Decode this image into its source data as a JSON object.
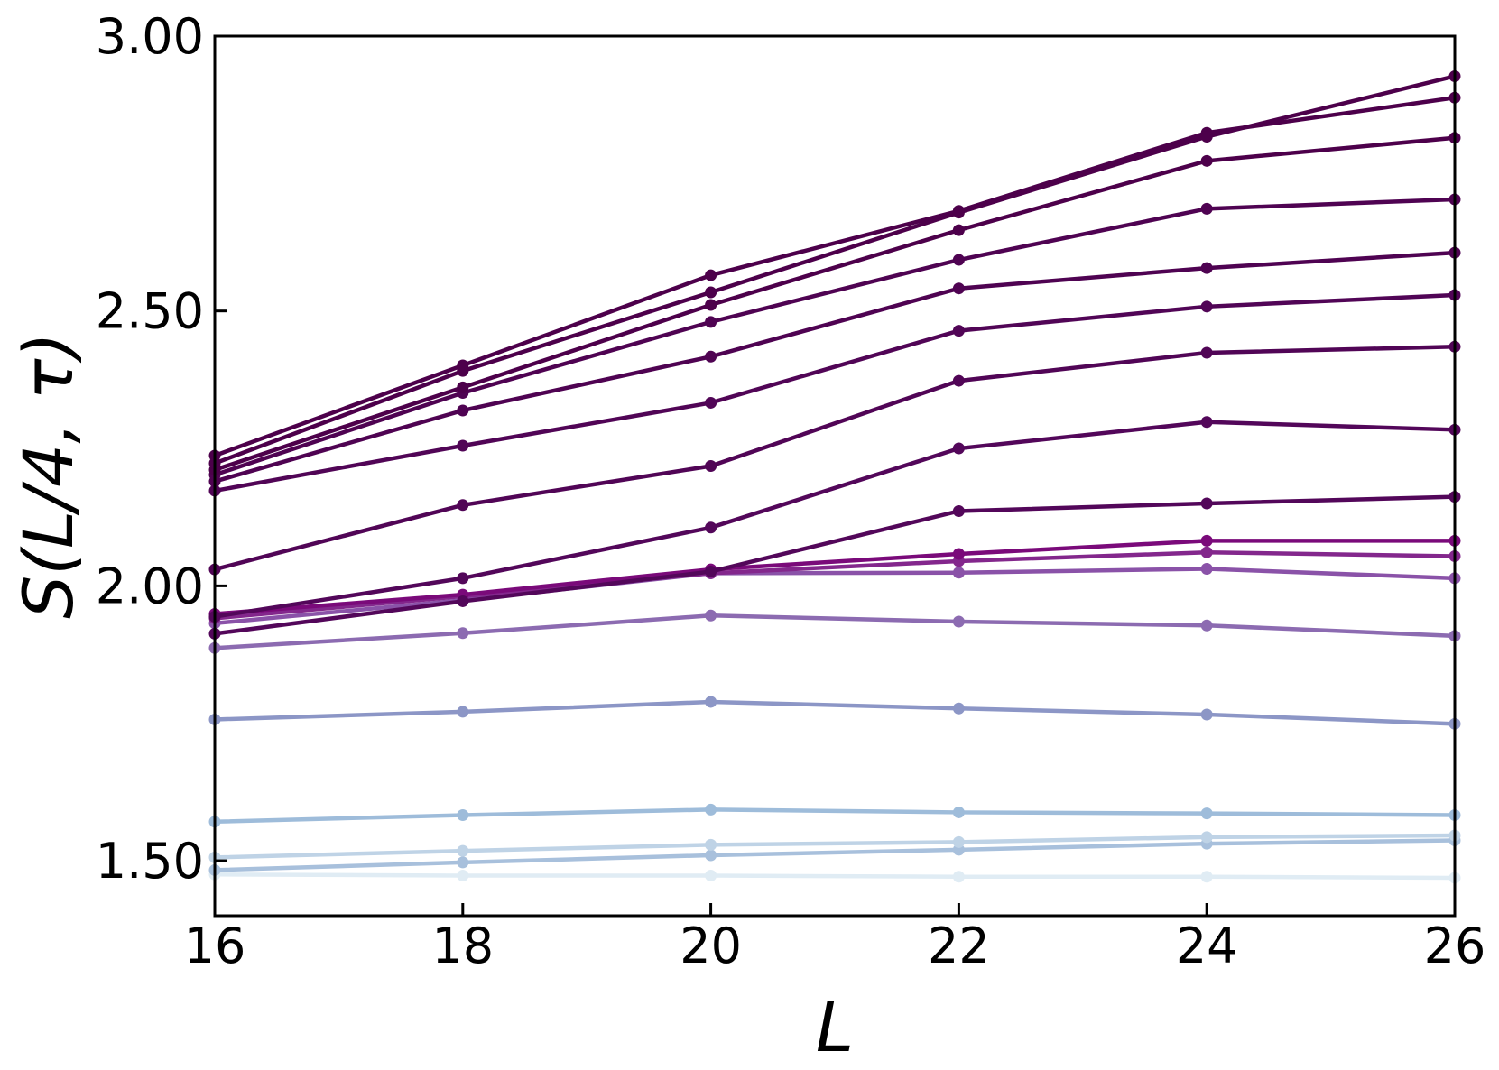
{
  "chart_data": {
    "type": "line",
    "x_label": "L",
    "y_label": "S(L/4, τ)",
    "x": [
      16,
      18,
      20,
      22,
      24,
      26
    ],
    "xlim": [
      16,
      26
    ],
    "xticks": [
      16,
      18,
      20,
      22,
      24,
      26
    ],
    "ylim": [
      1.4,
      3.0
    ],
    "yticks": [
      {
        "value": 1.5,
        "label": "1.50"
      },
      {
        "value": 2.0,
        "label": "2.00"
      },
      {
        "value": 2.5,
        "label": "2.50"
      },
      {
        "value": 3.0,
        "label": "3.00"
      }
    ],
    "series": [
      {
        "color": "#4d004b",
        "values": [
          2.223,
          2.391,
          2.534,
          2.679,
          2.817,
          2.927
        ]
      },
      {
        "color": "#4d004b",
        "values": [
          2.237,
          2.401,
          2.565,
          2.682,
          2.824,
          2.888
        ]
      },
      {
        "color": "#4d004b",
        "values": [
          2.211,
          2.361,
          2.511,
          2.647,
          2.773,
          2.815
        ]
      },
      {
        "color": "#4f0352",
        "values": [
          2.202,
          2.351,
          2.48,
          2.593,
          2.686,
          2.703
        ]
      },
      {
        "color": "#4f0352",
        "values": [
          2.19,
          2.319,
          2.417,
          2.541,
          2.578,
          2.606
        ]
      },
      {
        "color": "#510556",
        "values": [
          2.173,
          2.255,
          2.333,
          2.464,
          2.508,
          2.529
        ]
      },
      {
        "color": "#510556",
        "values": [
          2.03,
          2.147,
          2.218,
          2.373,
          2.424,
          2.435
        ]
      },
      {
        "color": "#53075a",
        "values": [
          1.944,
          2.014,
          2.106,
          2.25,
          2.298,
          2.284
        ]
      },
      {
        "color": "#53075a",
        "values": [
          1.913,
          1.972,
          2.026,
          2.136,
          2.15,
          2.162
        ]
      },
      {
        "color": "#7a0a7a",
        "values": [
          1.949,
          1.984,
          2.03,
          2.058,
          2.082,
          2.082
        ]
      },
      {
        "color": "#83278c",
        "values": [
          1.941,
          1.981,
          2.023,
          2.045,
          2.061,
          2.054
        ]
      },
      {
        "color": "#8a52a8",
        "values": [
          1.932,
          1.974,
          2.023,
          2.024,
          2.031,
          2.014
        ]
      },
      {
        "color": "#8c6bb1",
        "values": [
          1.887,
          1.914,
          1.946,
          1.935,
          1.928,
          1.909
        ]
      },
      {
        "color": "#8c96c6",
        "values": [
          1.757,
          1.771,
          1.789,
          1.777,
          1.766,
          1.749
        ]
      },
      {
        "color": "#9ebcda",
        "values": [
          1.571,
          1.583,
          1.593,
          1.588,
          1.586,
          1.583
        ]
      },
      {
        "color": "#bfd3e6",
        "values": [
          1.506,
          1.518,
          1.529,
          1.534,
          1.543,
          1.546
        ]
      },
      {
        "color": "#a8c0dc",
        "values": [
          1.483,
          1.497,
          1.51,
          1.52,
          1.531,
          1.537
        ]
      },
      {
        "color": "#e0ecf4",
        "values": [
          1.475,
          1.473,
          1.473,
          1.471,
          1.471,
          1.469
        ]
      }
    ]
  }
}
